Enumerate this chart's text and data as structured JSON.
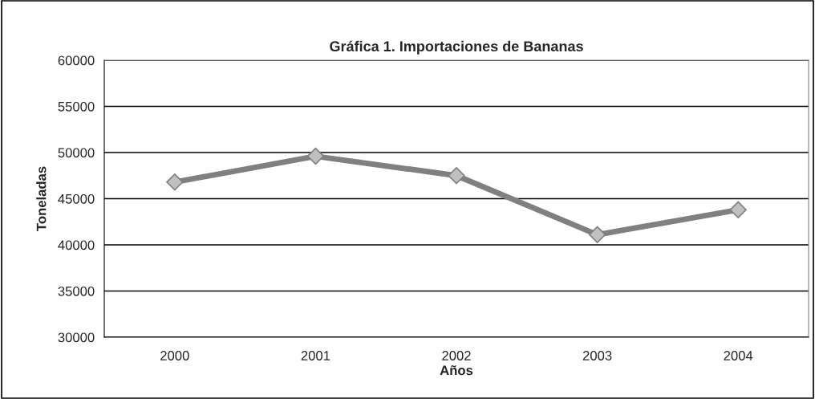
{
  "chart_data": {
    "type": "line",
    "title": "Gráfica 1. Importaciones de Bananas",
    "xlabel": "Años",
    "ylabel": "Toneladas",
    "categories": [
      "2000",
      "2001",
      "2002",
      "2003",
      "2004"
    ],
    "series": [
      {
        "color": "#808080",
        "values": [
          46800,
          49600,
          47500,
          41100,
          43800
        ]
      }
    ],
    "ylim": [
      30000,
      60000
    ],
    "yticks": [
      30000,
      35000,
      40000,
      45000,
      50000,
      55000,
      60000
    ],
    "grid": "y",
    "marker": "diamond",
    "line_style": "solid"
  }
}
